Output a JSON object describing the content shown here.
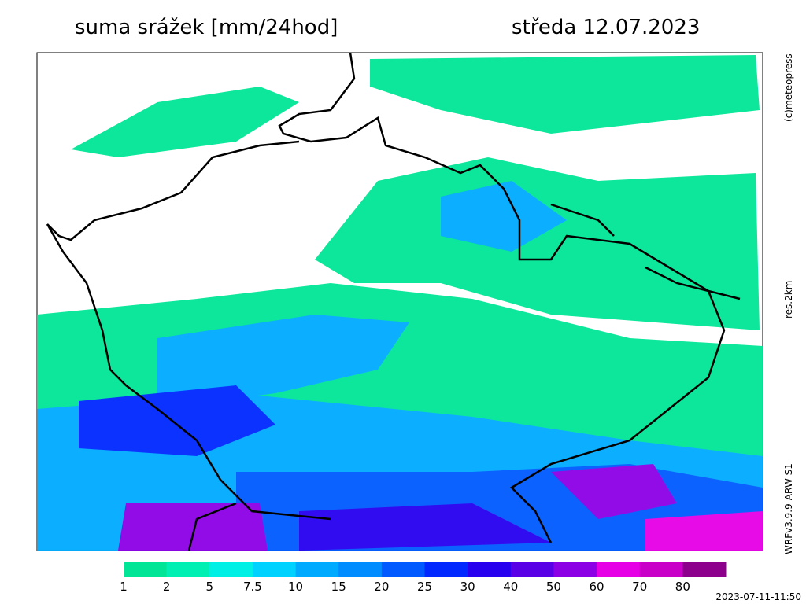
{
  "header": {
    "title": "suma srážek [mm/24hod]",
    "date": "středa 12.07.2023"
  },
  "side_labels": {
    "copyright": "(c)meteopress",
    "resolution": "res.2km",
    "model": "WRFv3.9.9-ARW-S1"
  },
  "legend": {
    "items": [
      {
        "label": "1",
        "color": "#00e696"
      },
      {
        "label": "2",
        "color": "#00f0b4"
      },
      {
        "label": "5",
        "color": "#00f0e6"
      },
      {
        "label": "7.5",
        "color": "#00d2ff"
      },
      {
        "label": "10",
        "color": "#00aaff"
      },
      {
        "label": "15",
        "color": "#008cff"
      },
      {
        "label": "20",
        "color": "#005aff"
      },
      {
        "label": "25",
        "color": "#0028ff"
      },
      {
        "label": "30",
        "color": "#2800f0"
      },
      {
        "label": "40",
        "color": "#5a00e6"
      },
      {
        "label": "50",
        "color": "#8c00e6"
      },
      {
        "label": "60",
        "color": "#e600e6"
      },
      {
        "label": "70",
        "color": "#c800c8"
      },
      {
        "label": "80",
        "color": "#8c008c"
      }
    ]
  },
  "timestamp": "2023-07-11-11:50"
}
